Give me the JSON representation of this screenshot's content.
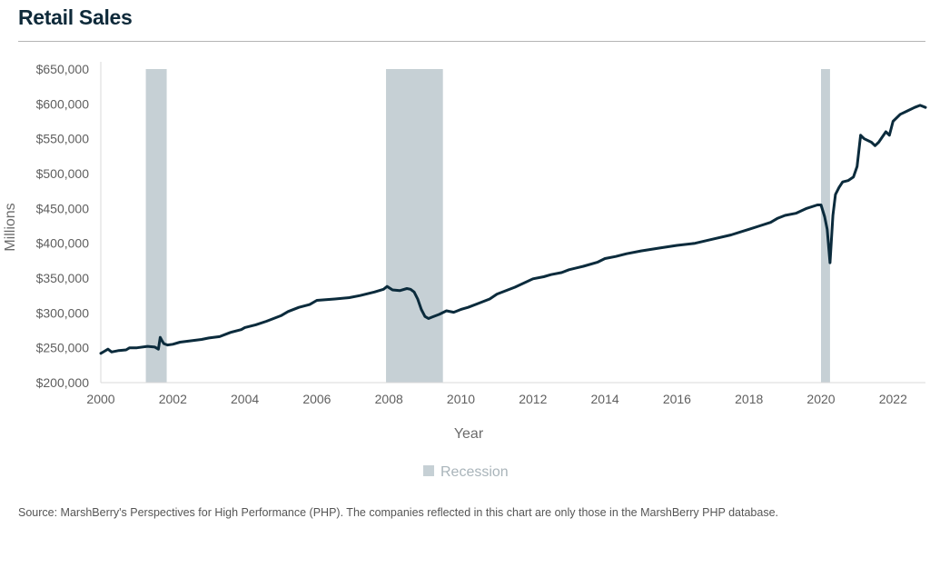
{
  "title": "Retail Sales",
  "source": "Source: MarshBerry's Perspectives for High Performance (PHP). The companies reflected in this chart are only those in the MarshBerry PHP database.",
  "colors": {
    "line": "#0b2b3c",
    "recession": "#c6d0d5",
    "title": "#0f2a3a"
  },
  "chart_data": {
    "type": "line",
    "title": "Retail Sales",
    "xlabel": "Year",
    "ylabel": "Millions",
    "xlim": [
      2000,
      2022.9
    ],
    "ylim": [
      200000,
      650000
    ],
    "xticks": [
      2000,
      2002,
      2004,
      2006,
      2008,
      2010,
      2012,
      2014,
      2016,
      2018,
      2020,
      2022
    ],
    "yticks": [
      200000,
      250000,
      300000,
      350000,
      400000,
      450000,
      500000,
      550000,
      600000,
      650000
    ],
    "ytick_labels": [
      "$200,000",
      "$250,000",
      "$300,000",
      "$350,000",
      "$400,000",
      "$450,000",
      "$500,000",
      "$550,000",
      "$600,000",
      "$650,000"
    ],
    "grid": false,
    "legend": {
      "position": "bottom",
      "entries": [
        "Recession"
      ]
    },
    "recessions": [
      {
        "start": 2001.25,
        "end": 2001.83
      },
      {
        "start": 2007.92,
        "end": 2009.5
      },
      {
        "start": 2020.0,
        "end": 2020.25
      }
    ],
    "series": [
      {
        "x": [
          2000.0,
          2000.1,
          2000.2,
          2000.3,
          2000.5,
          2000.7,
          2000.8,
          2001.0,
          2001.3,
          2001.5,
          2001.6,
          2001.65,
          2001.7,
          2001.75,
          2001.85,
          2002.0,
          2002.2,
          2002.5,
          2002.8,
          2003.0,
          2003.3,
          2003.6,
          2003.9,
          2004.0,
          2004.3,
          2004.6,
          2005.0,
          2005.2,
          2005.5,
          2005.8,
          2006.0,
          2006.5,
          2006.9,
          2007.2,
          2007.6,
          2007.85,
          2007.95,
          2008.1,
          2008.3,
          2008.5,
          2008.6,
          2008.7,
          2008.8,
          2008.9,
          2009.0,
          2009.1,
          2009.2,
          2009.4,
          2009.6,
          2009.8,
          2010.0,
          2010.2,
          2010.5,
          2010.8,
          2011.0,
          2011.5,
          2012.0,
          2012.3,
          2012.5,
          2012.8,
          2013.0,
          2013.4,
          2013.8,
          2014.0,
          2014.3,
          2014.6,
          2015.0,
          2015.5,
          2016.0,
          2016.5,
          2017.0,
          2017.5,
          2018.0,
          2018.3,
          2018.6,
          2018.8,
          2019.0,
          2019.3,
          2019.6,
          2019.9,
          2020.0,
          2020.1,
          2020.17,
          2020.25,
          2020.33,
          2020.4,
          2020.5,
          2020.6,
          2020.75,
          2020.9,
          2021.0,
          2021.1,
          2021.2,
          2021.4,
          2021.5,
          2021.6,
          2021.8,
          2021.9,
          2022.0,
          2022.2,
          2022.4,
          2022.6,
          2022.75,
          2022.9
        ],
        "values": [
          242000,
          245000,
          248000,
          244000,
          246000,
          247000,
          250000,
          250000,
          252000,
          251000,
          248000,
          265000,
          260000,
          256000,
          254000,
          255000,
          258000,
          260000,
          262000,
          264000,
          266000,
          272000,
          276000,
          279000,
          283000,
          288000,
          296000,
          302000,
          308000,
          312000,
          318000,
          320000,
          322000,
          325000,
          330000,
          334000,
          338000,
          333000,
          332000,
          335000,
          334000,
          330000,
          320000,
          305000,
          295000,
          292000,
          294000,
          298000,
          303000,
          301000,
          305000,
          308000,
          314000,
          320000,
          327000,
          337000,
          349000,
          352000,
          355000,
          358000,
          362000,
          367000,
          373000,
          378000,
          381000,
          385000,
          389000,
          393000,
          397000,
          400000,
          406000,
          412000,
          420000,
          425000,
          430000,
          436000,
          440000,
          443000,
          450000,
          455000,
          455000,
          438000,
          420000,
          372000,
          440000,
          470000,
          480000,
          488000,
          490000,
          495000,
          510000,
          555000,
          550000,
          545000,
          540000,
          545000,
          560000,
          555000,
          575000,
          585000,
          590000,
          595000,
          598000,
          595000
        ]
      }
    ]
  }
}
